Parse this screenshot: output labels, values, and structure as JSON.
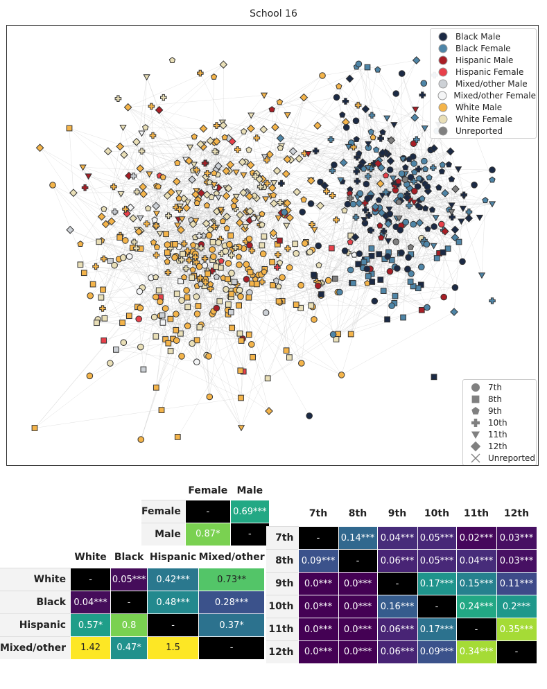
{
  "title": "School 16",
  "legend_race": [
    {
      "label": "Black Male",
      "color": "#1b2a45"
    },
    {
      "label": "Black Female",
      "color": "#4e85a7"
    },
    {
      "label": "Hispanic Male",
      "color": "#a81e26"
    },
    {
      "label": "Hispanic Female",
      "color": "#e8404a"
    },
    {
      "label": "Mixed/other Male",
      "color": "#cdd1d6"
    },
    {
      "label": "Mixed/other Female",
      "color": "#f4f5f6"
    },
    {
      "label": "White Male",
      "color": "#f4b44a"
    },
    {
      "label": "White Female",
      "color": "#e9dfb7"
    },
    {
      "label": "Unreported",
      "color": "#808080"
    }
  ],
  "legend_grade": [
    {
      "label": "7th",
      "shape": "circle"
    },
    {
      "label": "8th",
      "shape": "square"
    },
    {
      "label": "9th",
      "shape": "pentagon"
    },
    {
      "label": "10th",
      "shape": "plus"
    },
    {
      "label": "11th",
      "shape": "triangle"
    },
    {
      "label": "12th",
      "shape": "diamond"
    },
    {
      "label": "Unreported",
      "shape": "x"
    }
  ],
  "chart_data": [
    {
      "type": "network",
      "title": "School 16",
      "description_groups": [
        {
          "label": "White Male / White Female",
          "region": "left-center"
        },
        {
          "label": "Black Male / Black Female",
          "region": "right"
        },
        {
          "label": "Hispanic",
          "region": "mixed"
        }
      ]
    },
    {
      "type": "table",
      "name": "gender-mixing",
      "columns": [
        "Female",
        "Male"
      ],
      "rows": [
        {
          "label": "Female",
          "cells": [
            {
              "text": "-",
              "bg": "#000000",
              "fg": "#ffffff"
            },
            {
              "text": "0.69***",
              "bg": "#22a884",
              "fg": "#ffffff"
            }
          ]
        },
        {
          "label": "Male",
          "cells": [
            {
              "text": "0.87*",
              "bg": "#7ad151",
              "fg": "#ffffff"
            },
            {
              "text": "-",
              "bg": "#000000",
              "fg": "#ffffff"
            }
          ]
        }
      ]
    },
    {
      "type": "table",
      "name": "race-mixing",
      "columns": [
        "White",
        "Black",
        "Hispanic",
        "Mixed/other"
      ],
      "rows": [
        {
          "label": "White",
          "cells": [
            {
              "text": "-",
              "bg": "#000000",
              "fg": "#ffffff"
            },
            {
              "text": "0.05***",
              "bg": "#450d5a",
              "fg": "#ffffff"
            },
            {
              "text": "0.42***",
              "bg": "#2a788e",
              "fg": "#ffffff"
            },
            {
              "text": "0.73**",
              "bg": "#53c568",
              "fg": "#222222"
            }
          ]
        },
        {
          "label": "Black",
          "cells": [
            {
              "text": "0.04***",
              "bg": "#450d5a",
              "fg": "#ffffff"
            },
            {
              "text": "-",
              "bg": "#000000",
              "fg": "#ffffff"
            },
            {
              "text": "0.48***",
              "bg": "#23898e",
              "fg": "#ffffff"
            },
            {
              "text": "0.28***",
              "bg": "#3b528b",
              "fg": "#ffffff"
            }
          ]
        },
        {
          "label": "Hispanic",
          "cells": [
            {
              "text": "0.57*",
              "bg": "#1f9e89",
              "fg": "#ffffff"
            },
            {
              "text": "0.8",
              "bg": "#7ad151",
              "fg": "#ffffff"
            },
            {
              "text": "-",
              "bg": "#000000",
              "fg": "#ffffff"
            },
            {
              "text": "0.37*",
              "bg": "#2c728e",
              "fg": "#ffffff"
            }
          ]
        },
        {
          "label": "Mixed/other",
          "cells": [
            {
              "text": "1.42",
              "bg": "#fde725",
              "fg": "#222222"
            },
            {
              "text": "0.47*",
              "bg": "#21918c",
              "fg": "#ffffff"
            },
            {
              "text": "1.5",
              "bg": "#fde725",
              "fg": "#222222"
            },
            {
              "text": "-",
              "bg": "#000000",
              "fg": "#ffffff"
            }
          ]
        }
      ]
    },
    {
      "type": "table",
      "name": "grade-mixing",
      "columns": [
        "7th",
        "8th",
        "9th",
        "10th",
        "11th",
        "12th"
      ],
      "rows": [
        {
          "label": "7th",
          "cells": [
            {
              "text": "-",
              "bg": "#000000",
              "fg": "#ffffff"
            },
            {
              "text": "0.14***",
              "bg": "#31688e",
              "fg": "#ffffff"
            },
            {
              "text": "0.04***",
              "bg": "#472c7a",
              "fg": "#ffffff"
            },
            {
              "text": "0.05***",
              "bg": "#482878",
              "fg": "#ffffff"
            },
            {
              "text": "0.02***",
              "bg": "#46085c",
              "fg": "#ffffff"
            },
            {
              "text": "0.03***",
              "bg": "#471063",
              "fg": "#ffffff"
            }
          ]
        },
        {
          "label": "8th",
          "cells": [
            {
              "text": "0.09***",
              "bg": "#3b528b",
              "fg": "#ffffff"
            },
            {
              "text": "-",
              "bg": "#000000",
              "fg": "#ffffff"
            },
            {
              "text": "0.06***",
              "bg": "#482475",
              "fg": "#ffffff"
            },
            {
              "text": "0.05***",
              "bg": "#482878",
              "fg": "#ffffff"
            },
            {
              "text": "0.04***",
              "bg": "#472c7a",
              "fg": "#ffffff"
            },
            {
              "text": "0.03***",
              "bg": "#471063",
              "fg": "#ffffff"
            }
          ]
        },
        {
          "label": "9th",
          "cells": [
            {
              "text": "0.0***",
              "bg": "#440154",
              "fg": "#ffffff"
            },
            {
              "text": "0.0***",
              "bg": "#440154",
              "fg": "#ffffff"
            },
            {
              "text": "-",
              "bg": "#000000",
              "fg": "#ffffff"
            },
            {
              "text": "0.17***",
              "bg": "#1f948c",
              "fg": "#ffffff"
            },
            {
              "text": "0.15***",
              "bg": "#26818e",
              "fg": "#ffffff"
            },
            {
              "text": "0.11***",
              "bg": "#3e4a89",
              "fg": "#ffffff"
            }
          ]
        },
        {
          "label": "10th",
          "cells": [
            {
              "text": "0.0***",
              "bg": "#440154",
              "fg": "#ffffff"
            },
            {
              "text": "0.0***",
              "bg": "#440154",
              "fg": "#ffffff"
            },
            {
              "text": "0.16***",
              "bg": "#365c8d",
              "fg": "#ffffff"
            },
            {
              "text": "-",
              "bg": "#000000",
              "fg": "#ffffff"
            },
            {
              "text": "0.24***",
              "bg": "#22a884",
              "fg": "#ffffff"
            },
            {
              "text": "0.2***",
              "bg": "#1f988b",
              "fg": "#ffffff"
            }
          ]
        },
        {
          "label": "11th",
          "cells": [
            {
              "text": "0.0***",
              "bg": "#440154",
              "fg": "#ffffff"
            },
            {
              "text": "0.0***",
              "bg": "#440154",
              "fg": "#ffffff"
            },
            {
              "text": "0.06***",
              "bg": "#482475",
              "fg": "#ffffff"
            },
            {
              "text": "0.17***",
              "bg": "#2c728e",
              "fg": "#ffffff"
            },
            {
              "text": "-",
              "bg": "#000000",
              "fg": "#ffffff"
            },
            {
              "text": "0.35***",
              "bg": "#a5db36",
              "fg": "#ffffff"
            }
          ]
        },
        {
          "label": "12th",
          "cells": [
            {
              "text": "0.0***",
              "bg": "#440154",
              "fg": "#ffffff"
            },
            {
              "text": "0.0***",
              "bg": "#440154",
              "fg": "#ffffff"
            },
            {
              "text": "0.06***",
              "bg": "#482475",
              "fg": "#ffffff"
            },
            {
              "text": "0.09***",
              "bg": "#3b528b",
              "fg": "#ffffff"
            },
            {
              "text": "0.34***",
              "bg": "#a5db36",
              "fg": "#ffffff"
            },
            {
              "text": "-",
              "bg": "#000000",
              "fg": "#ffffff"
            }
          ]
        }
      ]
    }
  ]
}
